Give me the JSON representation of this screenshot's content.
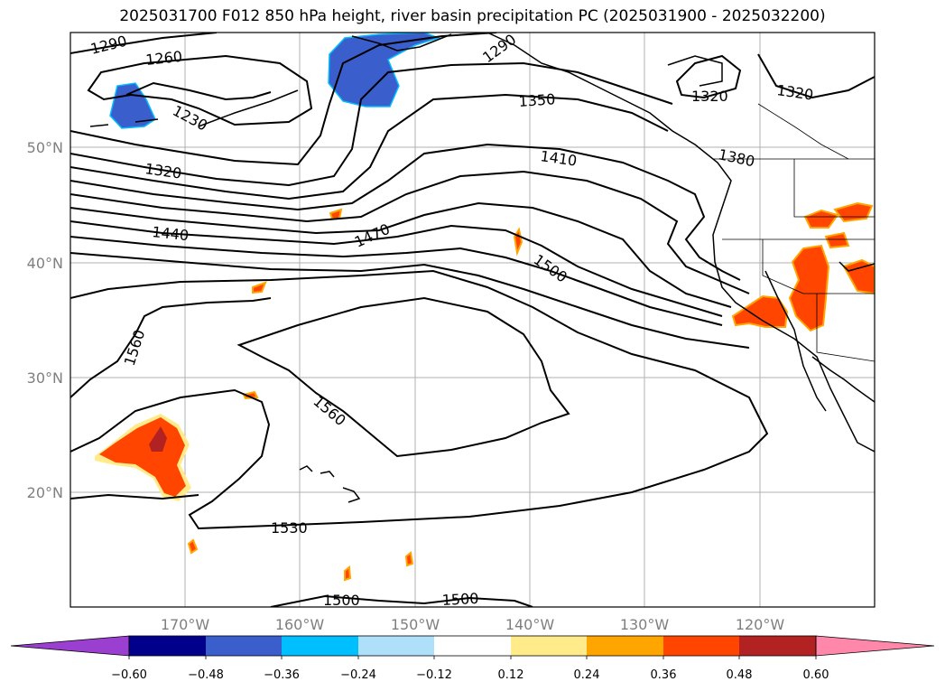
{
  "title": "2025031700 F012 850 hPa height, river basin precipitation PC (2025031900 - 2025032200)",
  "lat_labels": [
    "50°N",
    "40°N",
    "30°N",
    "20°N"
  ],
  "lon_labels": [
    "170°W",
    "160°W",
    "150°W",
    "140°W",
    "130°W",
    "120°W"
  ],
  "contour_labels": [
    "1290",
    "1260",
    "1230",
    "1320",
    "1440",
    "1470",
    "1290",
    "1350",
    "1410",
    "1500",
    "1380",
    "1320",
    "1320",
    "1560",
    "1560",
    "1530",
    "1500",
    "1500"
  ],
  "colorbar": {
    "tick_labels": [
      "−0.60",
      "−0.48",
      "−0.36",
      "−0.24",
      "−0.12",
      "0.12",
      "0.24",
      "0.36",
      "0.48",
      "0.60"
    ],
    "colors": [
      "#9a3fd0",
      "#00008b",
      "#3a5fcd",
      "#00bfff",
      "#aee0fa",
      "#ffffff",
      "#ffeb8a",
      "#ffa500",
      "#ff4500",
      "#b22222",
      "#ff88aa"
    ]
  }
}
